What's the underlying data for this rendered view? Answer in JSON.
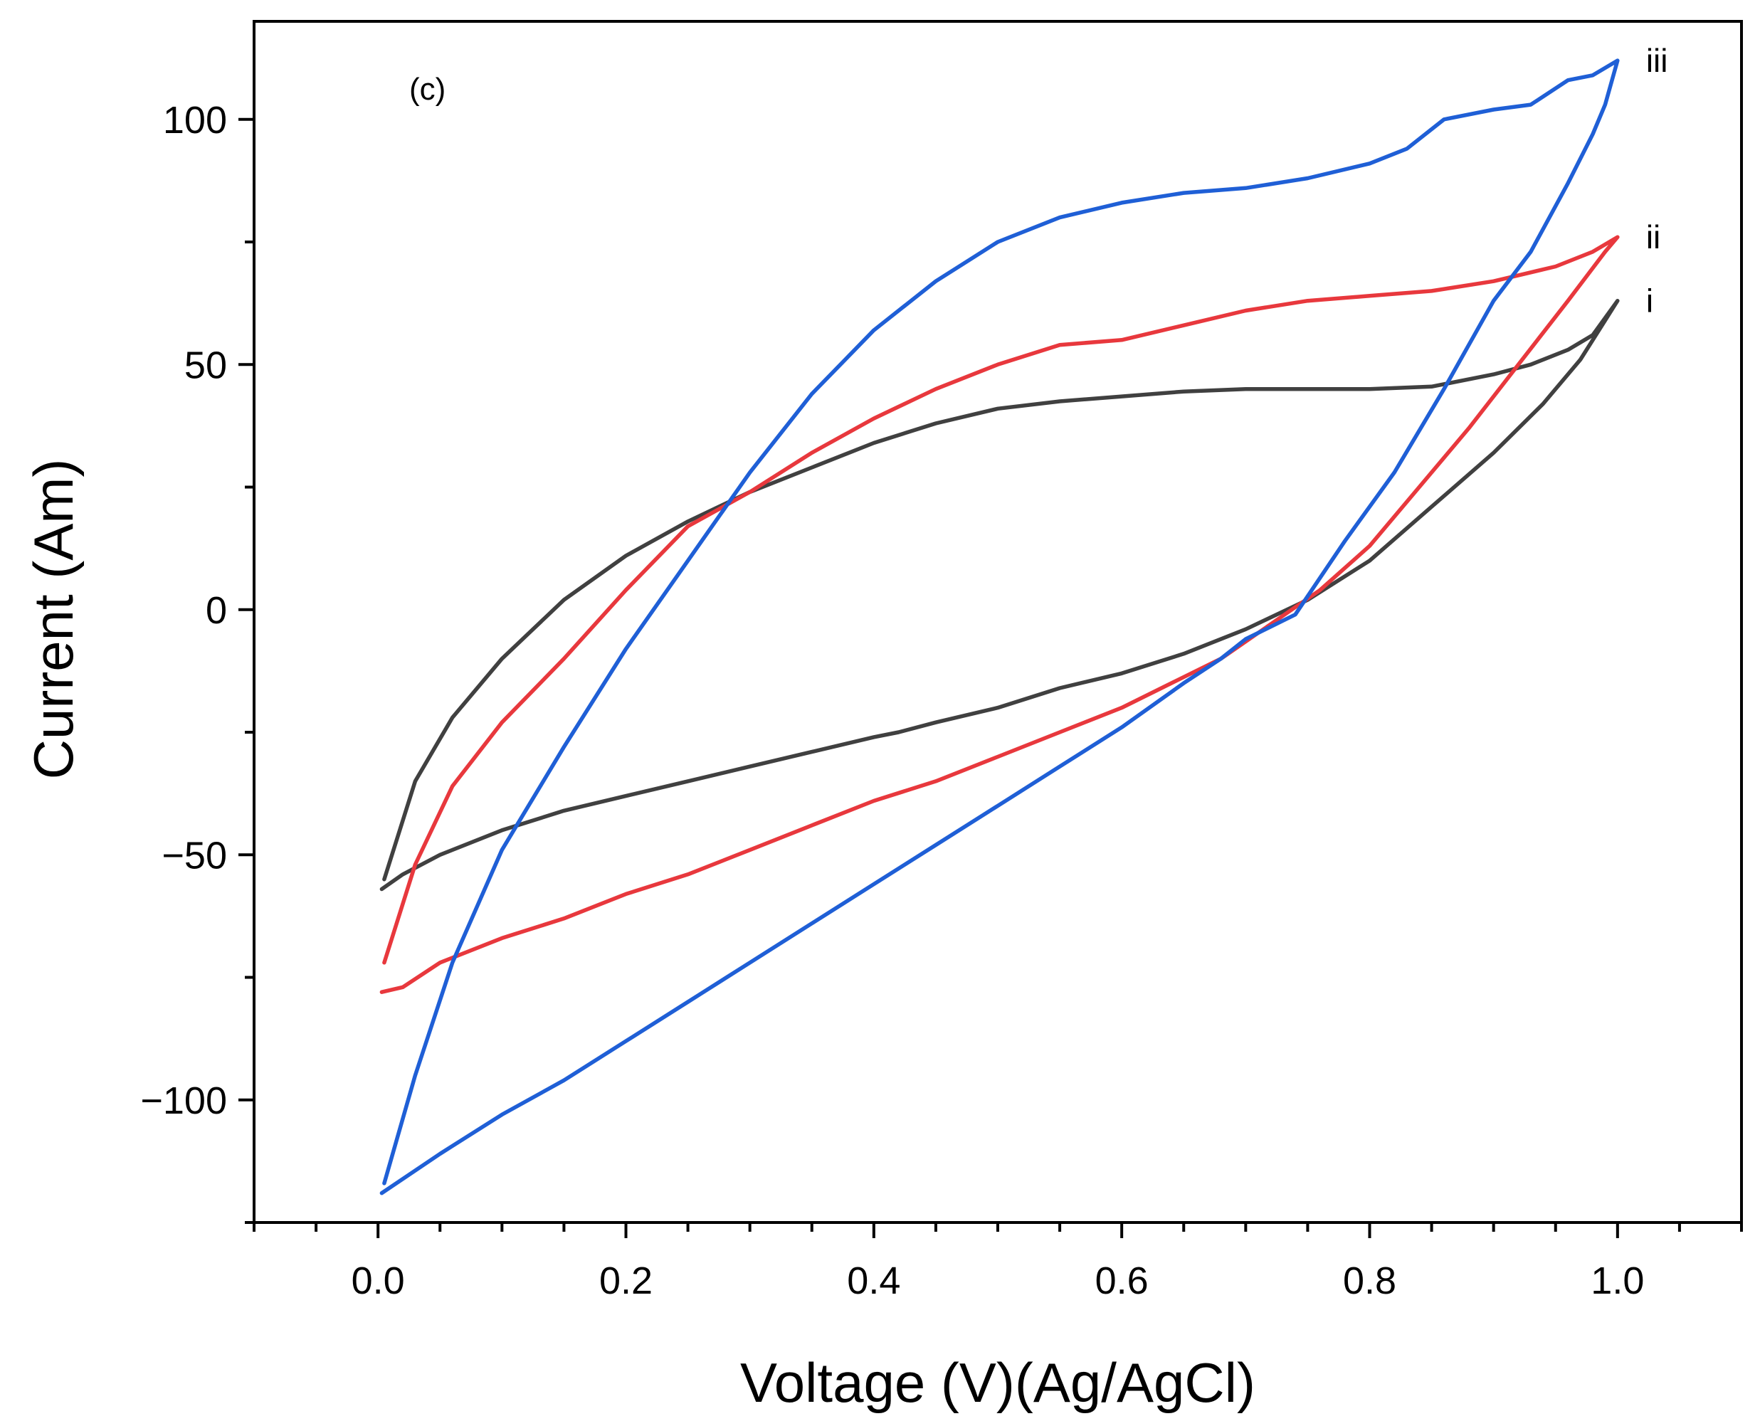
{
  "chart_data": {
    "type": "line",
    "title": "",
    "annotation": "(c)",
    "xlabel": "Voltage (V)(Ag/AgCl)",
    "ylabel": "Current (Am)",
    "xlim": [
      -0.1,
      1.1
    ],
    "ylim": [
      -125,
      120
    ],
    "xticks": [
      0.0,
      0.2,
      0.4,
      0.6,
      0.8,
      1.0
    ],
    "xtick_labels": [
      "0.0",
      "0.2",
      "0.4",
      "0.6",
      "0.8",
      "1.0"
    ],
    "yticks": [
      -100,
      -50,
      0,
      50,
      100
    ],
    "ytick_labels": [
      "−100",
      "−50",
      "0",
      "50",
      "100"
    ],
    "grid": false,
    "series": [
      {
        "name": "i",
        "color": "#404040",
        "x": [
          0.005,
          0.03,
          0.06,
          0.1,
          0.15,
          0.2,
          0.25,
          0.3,
          0.35,
          0.4,
          0.45,
          0.5,
          0.55,
          0.6,
          0.65,
          0.7,
          0.75,
          0.8,
          0.85,
          0.9,
          0.93,
          0.96,
          0.98,
          1.0,
          0.99,
          0.97,
          0.94,
          0.9,
          0.85,
          0.8,
          0.75,
          0.7,
          0.65,
          0.6,
          0.55,
          0.5,
          0.45,
          0.42,
          0.4,
          0.35,
          0.3,
          0.25,
          0.2,
          0.15,
          0.1,
          0.05,
          0.02,
          0.003
        ],
        "y": [
          -55,
          -35,
          -22,
          -10,
          2,
          11,
          18,
          24,
          29,
          34,
          38,
          41,
          42.5,
          43.5,
          44.5,
          45,
          45,
          45,
          45.5,
          48,
          50,
          53,
          56,
          63,
          59,
          51,
          42,
          32,
          21,
          10,
          2,
          -4,
          -9,
          -13,
          -16,
          -20,
          -23,
          -25,
          -26,
          -29,
          -32,
          -35,
          -38,
          -41,
          -45,
          -50,
          -54,
          -57
        ]
      },
      {
        "name": "ii",
        "color": "#e8383d",
        "x": [
          0.005,
          0.03,
          0.06,
          0.1,
          0.15,
          0.2,
          0.25,
          0.3,
          0.35,
          0.4,
          0.45,
          0.5,
          0.55,
          0.6,
          0.65,
          0.7,
          0.75,
          0.8,
          0.85,
          0.9,
          0.95,
          0.98,
          1.0,
          0.99,
          0.96,
          0.92,
          0.88,
          0.84,
          0.8,
          0.76,
          0.72,
          0.68,
          0.64,
          0.6,
          0.55,
          0.5,
          0.45,
          0.4,
          0.35,
          0.3,
          0.25,
          0.2,
          0.15,
          0.1,
          0.05,
          0.02,
          0.003
        ],
        "y": [
          -72,
          -52,
          -36,
          -23,
          -10,
          4,
          17,
          24,
          32,
          39,
          45,
          50,
          54,
          55,
          58,
          61,
          63,
          64,
          65,
          67,
          70,
          73,
          76,
          73,
          63,
          50,
          37,
          25,
          13,
          4,
          -3,
          -10,
          -15,
          -20,
          -25,
          -30,
          -35,
          -39,
          -44,
          -49,
          -54,
          -58,
          -63,
          -67,
          -72,
          -77,
          -78
        ]
      },
      {
        "name": "iii",
        "color": "#1f5fd6",
        "x": [
          0.005,
          0.03,
          0.06,
          0.1,
          0.15,
          0.2,
          0.25,
          0.3,
          0.35,
          0.4,
          0.45,
          0.5,
          0.55,
          0.6,
          0.65,
          0.7,
          0.75,
          0.8,
          0.83,
          0.86,
          0.9,
          0.93,
          0.96,
          0.98,
          1.0,
          0.99,
          0.98,
          0.96,
          0.93,
          0.9,
          0.86,
          0.82,
          0.78,
          0.74,
          0.7,
          0.68,
          0.65,
          0.6,
          0.55,
          0.5,
          0.45,
          0.4,
          0.35,
          0.3,
          0.25,
          0.2,
          0.15,
          0.1,
          0.05,
          0.003
        ],
        "y": [
          -117,
          -95,
          -72,
          -49,
          -28,
          -8,
          10,
          28,
          44,
          57,
          67,
          75,
          80,
          83,
          85,
          86,
          88,
          91,
          94,
          100,
          102,
          103,
          108,
          109,
          112,
          103,
          97,
          87,
          73,
          63,
          45,
          28,
          14,
          -1,
          -6,
          -10,
          -15,
          -24,
          -32,
          -40,
          -48,
          -56,
          -64,
          -72,
          -80,
          -88,
          -96,
          -103,
          -111,
          -119
        ]
      }
    ]
  }
}
